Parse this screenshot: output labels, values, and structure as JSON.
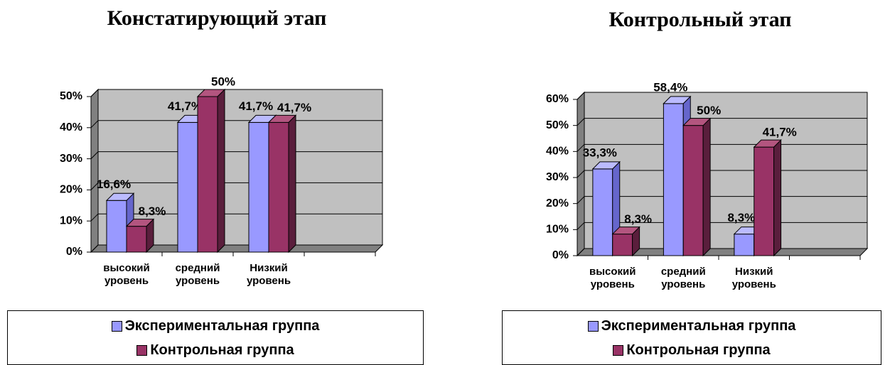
{
  "chart_data": [
    {
      "type": "bar",
      "title": "Констатирующий этап",
      "categories": [
        "высокий уровень",
        "средний уровень",
        "Низкий уровень",
        null
      ],
      "series": [
        {
          "name": "Экспериментальная группа",
          "color": "#9999ff",
          "values": [
            16.6,
            41.7,
            41.7,
            null
          ],
          "value_labels": [
            "16,6%",
            "41,7%",
            "41,7%",
            null
          ]
        },
        {
          "name": "Контрольная группа",
          "color": "#993366",
          "values": [
            8.3,
            50,
            41.7,
            null
          ],
          "value_labels": [
            "8,3%",
            "50%",
            "41,7%",
            null
          ]
        }
      ],
      "ylim": [
        0,
        50
      ],
      "yticks": [
        {
          "value": 0,
          "label": "0%"
        },
        {
          "value": 10,
          "label": "10%"
        },
        {
          "value": 20,
          "label": "20%"
        },
        {
          "value": 30,
          "label": "30%"
        },
        {
          "value": 40,
          "label": "40%"
        },
        {
          "value": 50,
          "label": "50%"
        }
      ],
      "grid": true
    },
    {
      "type": "bar",
      "title": "Контрольный этап",
      "categories": [
        "высокий уровень",
        "средний уровень",
        "Низкий уровень",
        null
      ],
      "series": [
        {
          "name": "Экспериментальная группа",
          "color": "#9999ff",
          "values": [
            33.3,
            58.4,
            8.3,
            null
          ],
          "value_labels": [
            "33,3%",
            "58,4%",
            "8,3%",
            null
          ]
        },
        {
          "name": "Контрольная группа",
          "color": "#993366",
          "values": [
            8.3,
            50,
            41.7,
            null
          ],
          "value_labels": [
            "8,3%",
            "50%",
            "41,7%",
            null
          ]
        }
      ],
      "ylim": [
        0,
        60
      ],
      "yticks": [
        {
          "value": 0,
          "label": "0%"
        },
        {
          "value": 10,
          "label": "10%"
        },
        {
          "value": 20,
          "label": "20%"
        },
        {
          "value": 30,
          "label": "30%"
        },
        {
          "value": 40,
          "label": "40%"
        },
        {
          "value": 50,
          "label": "50%"
        },
        {
          "value": 60,
          "label": "60%"
        }
      ],
      "grid": true
    }
  ]
}
